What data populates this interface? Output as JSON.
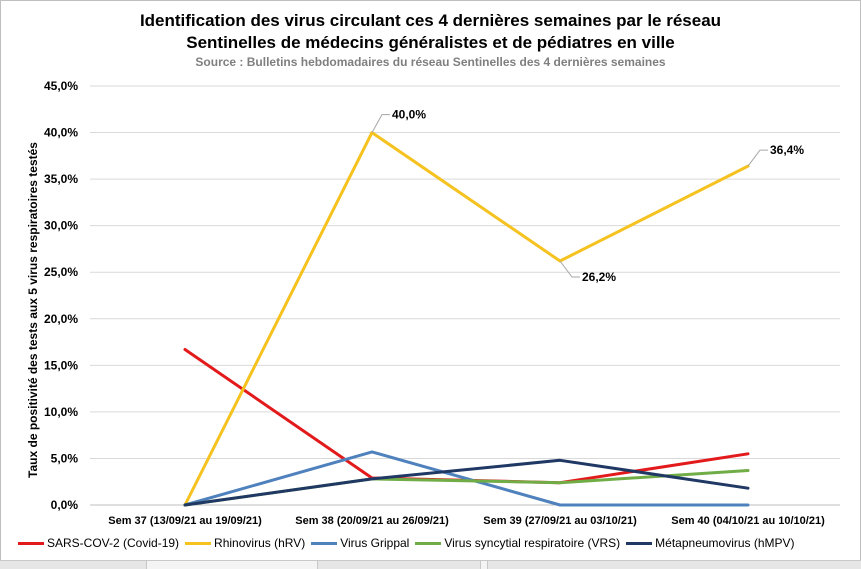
{
  "chart_data": {
    "type": "line",
    "title_line1": "Identification des virus circulant ces 4 dernières semaines par le réseau",
    "title_line2": "Sentinelles de médecins généralistes et de pédiatres en ville",
    "subtitle": "Source : Bulletins hebdomadaires du réseau Sentinelles des 4 dernières semaines",
    "ylabel": "Taux de positivité des tests aux 5 virus respiratoires testés",
    "xlabel": "",
    "categories": [
      "Sem 37 (13/09/21 au 19/09/21)",
      "Sem 38 (20/09/21 au 26/09/21)",
      "Sem 39 (27/09/21 au 03/10/21)",
      "Sem 40 (04/10/21 au 10/10/21)"
    ],
    "ylim": [
      0,
      45
    ],
    "yticks": [
      "0,0%",
      "5,0%",
      "10,0%",
      "15,0%",
      "20,0%",
      "25,0%",
      "30,0%",
      "35,0%",
      "40,0%",
      "45,0%"
    ],
    "grid": true,
    "legend_position": "bottom",
    "series": [
      {
        "name": "SARS-COV-2 (Covid-19)",
        "color": "#e31a1c",
        "values": [
          16.7,
          2.9,
          2.4,
          5.5
        ]
      },
      {
        "name": "Rhinovirus (hRV)",
        "color": "#f5c220",
        "values": [
          0.0,
          40.0,
          26.2,
          36.4
        ]
      },
      {
        "name": "Virus Grippal",
        "color": "#4f81bd",
        "values": [
          0.0,
          5.7,
          0.0,
          0.0
        ]
      },
      {
        "name": "Virus syncytial respiratoire (VRS)",
        "color": "#70ad47",
        "values": [
          0.0,
          2.8,
          2.4,
          3.7
        ]
      },
      {
        "name": "Métapneumovirus (hMPV)",
        "color": "#203864",
        "values": [
          0.0,
          2.8,
          4.8,
          1.8
        ]
      }
    ],
    "annotations": [
      {
        "series": 1,
        "index": 1,
        "text": "40,0%"
      },
      {
        "series": 1,
        "index": 2,
        "text": "26,2%"
      },
      {
        "series": 1,
        "index": 3,
        "text": "36,4%"
      }
    ]
  }
}
